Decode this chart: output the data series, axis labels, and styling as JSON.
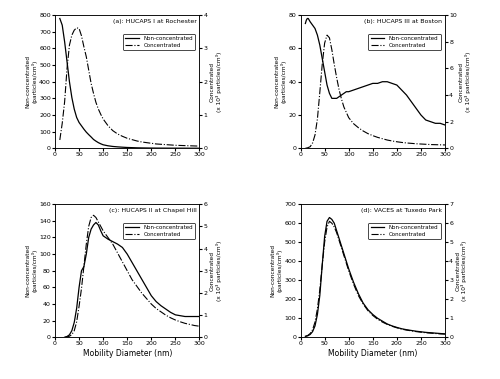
{
  "subplots": [
    {
      "label": "(a): HUCAPS I at Rochester",
      "ylim_left": [
        0,
        800
      ],
      "ylim_right": [
        0,
        4
      ],
      "yticks_left": [
        0,
        100,
        200,
        300,
        400,
        500,
        600,
        700,
        800
      ],
      "yticks_right": [
        0,
        1,
        2,
        3,
        4
      ],
      "nc_x": [
        10,
        15,
        20,
        25,
        30,
        35,
        40,
        45,
        50,
        55,
        60,
        65,
        70,
        75,
        80,
        85,
        90,
        95,
        100,
        110,
        120,
        130,
        140,
        150,
        160,
        170,
        180,
        190,
        200,
        210,
        220,
        230,
        240,
        250,
        260,
        270,
        280,
        290,
        300
      ],
      "nc_y": [
        780,
        740,
        640,
        520,
        400,
        305,
        235,
        185,
        155,
        135,
        115,
        97,
        82,
        68,
        53,
        43,
        34,
        27,
        21,
        15,
        11,
        8.5,
        6.5,
        4.8,
        3.8,
        2.8,
        2.2,
        1.8,
        1.4,
        1.1,
        0.95,
        0.85,
        0.75,
        0.65,
        0.55,
        0.48,
        0.42,
        0.38,
        0.32
      ],
      "c_x": [
        10,
        15,
        20,
        25,
        30,
        35,
        40,
        45,
        50,
        55,
        60,
        65,
        70,
        75,
        80,
        85,
        90,
        95,
        100,
        110,
        120,
        130,
        140,
        150,
        160,
        170,
        180,
        190,
        200,
        210,
        220,
        230,
        240,
        250,
        260,
        270,
        280,
        290,
        300
      ],
      "c_y": [
        0.25,
        0.75,
        1.4,
        2.4,
        3.1,
        3.4,
        3.55,
        3.62,
        3.6,
        3.38,
        3.05,
        2.75,
        2.35,
        1.95,
        1.65,
        1.38,
        1.18,
        1.02,
        0.88,
        0.68,
        0.53,
        0.43,
        0.36,
        0.3,
        0.26,
        0.22,
        0.19,
        0.17,
        0.15,
        0.13,
        0.12,
        0.11,
        0.1,
        0.09,
        0.085,
        0.08,
        0.075,
        0.07,
        0.065
      ]
    },
    {
      "label": "(b): HUCAPS III at Boston",
      "ylim_left": [
        0,
        80
      ],
      "ylim_right": [
        0,
        10
      ],
      "yticks_left": [
        0,
        20,
        40,
        60,
        80
      ],
      "yticks_right": [
        0,
        2,
        4,
        6,
        8,
        10
      ],
      "nc_x": [
        10,
        12,
        14,
        16,
        18,
        20,
        25,
        30,
        35,
        40,
        45,
        50,
        55,
        60,
        65,
        70,
        75,
        80,
        85,
        90,
        95,
        100,
        110,
        120,
        130,
        140,
        150,
        160,
        170,
        180,
        190,
        200,
        210,
        220,
        230,
        240,
        250,
        260,
        270,
        280,
        290,
        300
      ],
      "nc_y": [
        75,
        77,
        78,
        78,
        77,
        76,
        74,
        72,
        68,
        62,
        54,
        46,
        38,
        33,
        30,
        30,
        30,
        31,
        32,
        33,
        34,
        34,
        35,
        36,
        37,
        38,
        39,
        39,
        40,
        40,
        39,
        38,
        35,
        32,
        28,
        24,
        20,
        17,
        16,
        15,
        15,
        14
      ],
      "c_x": [
        10,
        15,
        20,
        25,
        30,
        35,
        40,
        45,
        50,
        55,
        60,
        65,
        70,
        75,
        80,
        85,
        90,
        95,
        100,
        110,
        120,
        130,
        140,
        150,
        160,
        170,
        180,
        190,
        200,
        210,
        220,
        230,
        240,
        250,
        260,
        270,
        280,
        290,
        300
      ],
      "c_y": [
        0,
        0.04,
        0.12,
        0.4,
        1.0,
        2.2,
        4.2,
        6.3,
        7.9,
        8.5,
        8.3,
        7.4,
        6.3,
        5.3,
        4.4,
        3.7,
        3.1,
        2.7,
        2.3,
        1.85,
        1.55,
        1.3,
        1.1,
        0.95,
        0.82,
        0.72,
        0.62,
        0.55,
        0.49,
        0.44,
        0.4,
        0.37,
        0.34,
        0.32,
        0.3,
        0.28,
        0.27,
        0.26,
        0.25
      ]
    },
    {
      "label": "(c): HUCAPS II at Chapel Hill",
      "ylim_left": [
        0,
        160
      ],
      "ylim_right": [
        0,
        6
      ],
      "yticks_left": [
        0,
        20,
        40,
        60,
        80,
        100,
        120,
        140,
        160
      ],
      "yticks_right": [
        0,
        1,
        2,
        3,
        4,
        5,
        6
      ],
      "nc_x": [
        20,
        25,
        30,
        35,
        40,
        45,
        50,
        55,
        60,
        65,
        70,
        75,
        80,
        85,
        90,
        95,
        100,
        110,
        120,
        130,
        140,
        150,
        160,
        170,
        180,
        190,
        200,
        210,
        220,
        230,
        240,
        250,
        260,
        270,
        280,
        290,
        300
      ],
      "nc_y": [
        0,
        1,
        3,
        8,
        18,
        35,
        60,
        80,
        85,
        100,
        120,
        130,
        135,
        138,
        135,
        128,
        122,
        118,
        115,
        112,
        108,
        100,
        90,
        80,
        70,
        60,
        50,
        43,
        38,
        34,
        30,
        27,
        26,
        25,
        25,
        25,
        25
      ],
      "c_x": [
        20,
        25,
        30,
        35,
        40,
        45,
        50,
        55,
        60,
        65,
        70,
        75,
        80,
        85,
        90,
        95,
        100,
        110,
        120,
        130,
        140,
        150,
        160,
        170,
        180,
        190,
        200,
        210,
        220,
        230,
        240,
        250,
        260,
        270,
        280,
        290,
        300
      ],
      "c_y": [
        0,
        0.02,
        0.05,
        0.12,
        0.3,
        0.7,
        1.4,
        2.2,
        3.2,
        4.2,
        5.0,
        5.4,
        5.5,
        5.4,
        5.2,
        5.0,
        4.8,
        4.5,
        4.2,
        3.8,
        3.4,
        3.0,
        2.6,
        2.3,
        2.0,
        1.75,
        1.5,
        1.3,
        1.15,
        1.0,
        0.88,
        0.78,
        0.7,
        0.63,
        0.58,
        0.53,
        0.5
      ]
    },
    {
      "label": "(d): VACES at Tuxedo Park",
      "ylim_left": [
        0,
        700
      ],
      "ylim_right": [
        0,
        7
      ],
      "yticks_left": [
        0,
        100,
        200,
        300,
        400,
        500,
        600,
        700
      ],
      "yticks_right": [
        0,
        1,
        2,
        3,
        4,
        5,
        6,
        7
      ],
      "nc_x": [
        10,
        15,
        20,
        25,
        30,
        35,
        40,
        45,
        50,
        55,
        60,
        65,
        70,
        75,
        80,
        85,
        90,
        95,
        100,
        110,
        120,
        130,
        140,
        150,
        160,
        170,
        180,
        190,
        200,
        210,
        220,
        230,
        240,
        250,
        260,
        270,
        280,
        290,
        300
      ],
      "nc_y": [
        5,
        8,
        15,
        30,
        60,
        120,
        220,
        380,
        530,
        610,
        630,
        620,
        600,
        560,
        520,
        480,
        440,
        400,
        360,
        290,
        230,
        180,
        145,
        120,
        100,
        85,
        70,
        60,
        52,
        45,
        40,
        36,
        32,
        29,
        26,
        24,
        22,
        20,
        18
      ],
      "c_x": [
        10,
        15,
        20,
        25,
        30,
        35,
        40,
        45,
        50,
        55,
        60,
        65,
        70,
        75,
        80,
        85,
        90,
        95,
        100,
        110,
        120,
        130,
        140,
        150,
        160,
        170,
        180,
        190,
        200,
        210,
        220,
        230,
        240,
        250,
        260,
        270,
        280,
        290,
        300
      ],
      "c_y": [
        0.05,
        0.1,
        0.2,
        0.4,
        0.8,
        1.5,
        2.5,
        3.8,
        5.0,
        5.8,
        6.1,
        6.0,
        5.8,
        5.5,
        5.1,
        4.7,
        4.3,
        3.9,
        3.5,
        2.8,
        2.2,
        1.75,
        1.4,
        1.15,
        0.95,
        0.8,
        0.68,
        0.58,
        0.5,
        0.43,
        0.38,
        0.34,
        0.3,
        0.27,
        0.24,
        0.22,
        0.2,
        0.18,
        0.17
      ]
    }
  ],
  "xlabel": "Mobility Diameter (nm)",
  "nc_linestyle": "-",
  "c_linestyle": "-.",
  "nc_color": "black",
  "c_color": "black",
  "nc_linewidth": 0.9,
  "c_linewidth": 0.8,
  "legend_nc": "Non-concentrated",
  "legend_c": "Concentrated",
  "xlim": [
    0,
    300
  ],
  "xticks": [
    0,
    50,
    100,
    150,
    200,
    250,
    300
  ]
}
